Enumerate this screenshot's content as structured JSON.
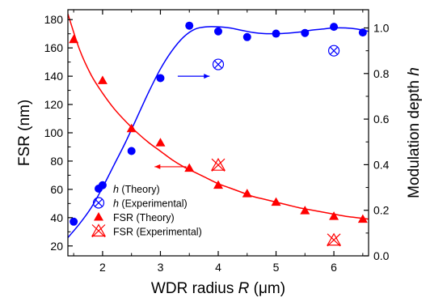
{
  "chart_data": {
    "type": "scatter",
    "x_axis": {
      "label_prefix": "WDR radius ",
      "label_var": "R",
      "label_unit": " (μm)",
      "range": [
        1.4,
        6.6
      ],
      "ticks": [
        2,
        3,
        4,
        5,
        6
      ],
      "minor_ticks": [
        1.5,
        2.5,
        3.5,
        4.5,
        5.5,
        6.5
      ]
    },
    "y_left": {
      "label": "FSR (nm)",
      "range": [
        13,
        187
      ],
      "ticks": [
        20,
        40,
        60,
        80,
        100,
        120,
        140,
        160,
        180
      ]
    },
    "y_right": {
      "label_prefix": "Modulation depth ",
      "label_var": "h",
      "range": [
        0,
        1.08
      ],
      "ticks": [
        0.0,
        0.2,
        0.4,
        0.6,
        0.8,
        1.0
      ]
    },
    "series": [
      {
        "name": "h (Theory)",
        "name_var": "h",
        "name_rest": " (Theory)",
        "axis": "right",
        "marker": "circle",
        "color": "#0000ff",
        "x": [
          1.5,
          2.0,
          2.5,
          3.0,
          3.5,
          4.0,
          4.5,
          5.0,
          5.5,
          6.0,
          6.5
        ],
        "y": [
          0.15,
          0.31,
          0.46,
          0.78,
          1.01,
          0.985,
          0.96,
          0.975,
          0.978,
          1.005,
          0.98
        ]
      },
      {
        "name": "h (Experimental)",
        "name_var": "h",
        "name_rest": " (Experimental)",
        "axis": "right",
        "marker": "circle-cross",
        "color": "#0000ff",
        "x": [
          4.0,
          6.0
        ],
        "y": [
          0.84,
          0.9
        ]
      },
      {
        "name": "FSR (Theory)",
        "axis": "left",
        "marker": "triangle",
        "color": "#ff0000",
        "x": [
          1.5,
          2.0,
          2.5,
          3.0,
          3.5,
          4.0,
          4.5,
          5.0,
          5.5,
          6.0,
          6.5
        ],
        "y": [
          166,
          137,
          103,
          93,
          75,
          63,
          57,
          51,
          45,
          41,
          39
        ]
      },
      {
        "name": "FSR (Experimental)",
        "axis": "left",
        "marker": "triangle-cross",
        "color": "#ff0000",
        "x": [
          4.0,
          6.0
        ],
        "y": [
          77,
          24
        ]
      }
    ],
    "fit_curves": [
      {
        "axis": "right",
        "color": "#0000ff",
        "x": [
          1.4,
          1.6,
          1.8,
          2.0,
          2.2,
          2.4,
          2.6,
          2.8,
          3.0,
          3.2,
          3.4,
          3.6,
          3.8,
          4.0,
          4.2,
          4.4,
          4.6,
          4.8,
          5.0,
          5.2,
          5.4,
          5.6,
          5.8,
          6.0,
          6.2,
          6.4,
          6.6
        ],
        "y": [
          0.08,
          0.14,
          0.21,
          0.3,
          0.4,
          0.5,
          0.61,
          0.72,
          0.82,
          0.9,
          0.96,
          0.995,
          1.005,
          1.005,
          1.0,
          0.99,
          0.98,
          0.975,
          0.975,
          0.977,
          0.982,
          0.99,
          0.995,
          1.0,
          1.0,
          0.995,
          0.985
        ]
      },
      {
        "axis": "left",
        "color": "#ff0000",
        "x": [
          1.4,
          1.6,
          1.8,
          2.0,
          2.2,
          2.4,
          2.6,
          2.8,
          3.0,
          3.2,
          3.4,
          3.6,
          3.8,
          4.0,
          4.2,
          4.4,
          4.6,
          4.8,
          5.0,
          5.2,
          5.4,
          5.6,
          5.8,
          6.0,
          6.2,
          6.4,
          6.6
        ],
        "y": [
          184,
          159,
          141,
          128,
          117,
          108,
          100,
          93,
          87,
          81,
          76,
          72,
          68,
          64,
          61,
          58,
          55,
          53,
          51,
          49,
          47,
          45.5,
          44,
          42.5,
          41,
          40,
          39
        ]
      }
    ],
    "annotations": [
      {
        "type": "arrow",
        "axis": "left",
        "color": "#0000ff",
        "x_from": 3.3,
        "x_to": 3.85,
        "y": 140
      },
      {
        "type": "arrow",
        "axis": "left",
        "color": "#ff0000",
        "x_from": 3.45,
        "x_to": 2.9,
        "y": 76
      }
    ],
    "legend": {
      "placement": "bottom-left"
    },
    "grid": false
  }
}
